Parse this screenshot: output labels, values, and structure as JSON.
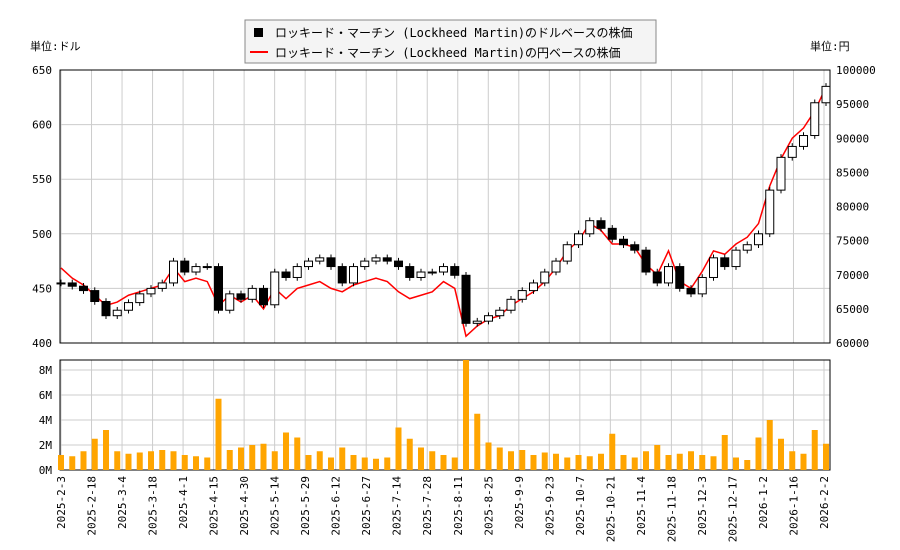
{
  "chart_data": {
    "type": "candlestick+line+bar",
    "legend": {
      "placement": "top-center",
      "entries": [
        {
          "label": "ロッキード・マーチン (Lockheed Martin)のドルベースの株価",
          "color": "#000000",
          "marker": "square"
        },
        {
          "label": "ロッキード・マーチン (Lockheed Martin)の円ベースの株価",
          "color": "#ff0000",
          "marker": "line"
        }
      ]
    },
    "left_unit": "単位:ドル",
    "right_unit": "単位:円",
    "left_ylim": [
      400,
      650
    ],
    "right_ylim": [
      60000,
      100000
    ],
    "left_ticks": [
      "400",
      "450",
      "500",
      "550",
      "600",
      "650"
    ],
    "right_ticks": [
      "60000",
      "65000",
      "70000",
      "75000",
      "80000",
      "85000",
      "90000",
      "95000",
      "100000"
    ],
    "volume_ticks": [
      "0M",
      "2M",
      "4M",
      "6M",
      "8M"
    ],
    "volume_ylim": [
      0,
      8.8
    ],
    "x_ticks": [
      "2025-2-3",
      "2025-2-18",
      "2025-3-4",
      "2025-3-18",
      "2025-4-1",
      "2025-4-15",
      "2025-4-30",
      "2025-5-14",
      "2025-5-29",
      "2025-6-12",
      "2025-6-27",
      "2025-7-14",
      "2025-7-28",
      "2025-8-11",
      "2025-8-25",
      "2025-9-9",
      "2025-9-23",
      "2025-10-7",
      "2025-10-21",
      "2025-11-4",
      "2025-11-18",
      "2025-12-3",
      "2025-12-17",
      "2026-1-2",
      "2026-1-16",
      "2026-2-2"
    ],
    "grid": true,
    "colors": {
      "candle": "#000000",
      "yen_line": "#ff0000",
      "volume": "#ffa500"
    },
    "usd_close": [
      455,
      452,
      448,
      438,
      425,
      430,
      437,
      445,
      450,
      455,
      475,
      465,
      470,
      470,
      430,
      445,
      440,
      450,
      435,
      465,
      460,
      470,
      475,
      478,
      470,
      455,
      470,
      475,
      478,
      475,
      470,
      460,
      465,
      465,
      470,
      462,
      418,
      420,
      425,
      430,
      440,
      448,
      455,
      465,
      475,
      490,
      500,
      512,
      505,
      495,
      490,
      485,
      465,
      455,
      470,
      450,
      445,
      460,
      478,
      470,
      485,
      490,
      500,
      540,
      570,
      580,
      590,
      620,
      635
    ],
    "jpy_close": [
      71000,
      69500,
      68500,
      67000,
      65500,
      66000,
      67000,
      67500,
      68000,
      68500,
      71000,
      69000,
      69500,
      69000,
      65500,
      67000,
      66000,
      67000,
      65000,
      68000,
      66500,
      68000,
      68500,
      69000,
      68000,
      67500,
      68500,
      69000,
      69500,
      69000,
      67500,
      66500,
      67000,
      67500,
      69000,
      68000,
      61000,
      62500,
      63500,
      64000,
      65500,
      66500,
      67500,
      69000,
      71000,
      73500,
      75000,
      77500,
      76500,
      74500,
      74500,
      74000,
      71500,
      70000,
      73500,
      69000,
      68000,
      70500,
      73500,
      73000,
      74500,
      75500,
      77500,
      83000,
      87000,
      90000,
      91500,
      94000,
      97500
    ],
    "volume_millions": [
      1.2,
      1.1,
      1.5,
      2.5,
      3.2,
      1.5,
      1.3,
      1.4,
      1.5,
      1.6,
      1.5,
      1.2,
      1.1,
      1.0,
      5.7,
      1.6,
      1.8,
      2.0,
      2.1,
      1.5,
      3.0,
      2.6,
      1.2,
      1.5,
      1.0,
      1.8,
      1.2,
      1.0,
      0.9,
      1.0,
      3.4,
      2.5,
      1.8,
      1.5,
      1.2,
      1.0,
      8.8,
      4.5,
      2.2,
      1.8,
      1.5,
      1.6,
      1.2,
      1.4,
      1.3,
      1.0,
      1.2,
      1.1,
      1.3,
      2.9,
      1.2,
      1.0,
      1.5,
      2.0,
      1.2,
      1.3,
      1.5,
      1.2,
      1.1,
      2.8,
      1.0,
      0.8,
      2.6,
      4.0,
      2.5,
      1.5,
      1.3,
      3.2,
      2.1
    ]
  }
}
